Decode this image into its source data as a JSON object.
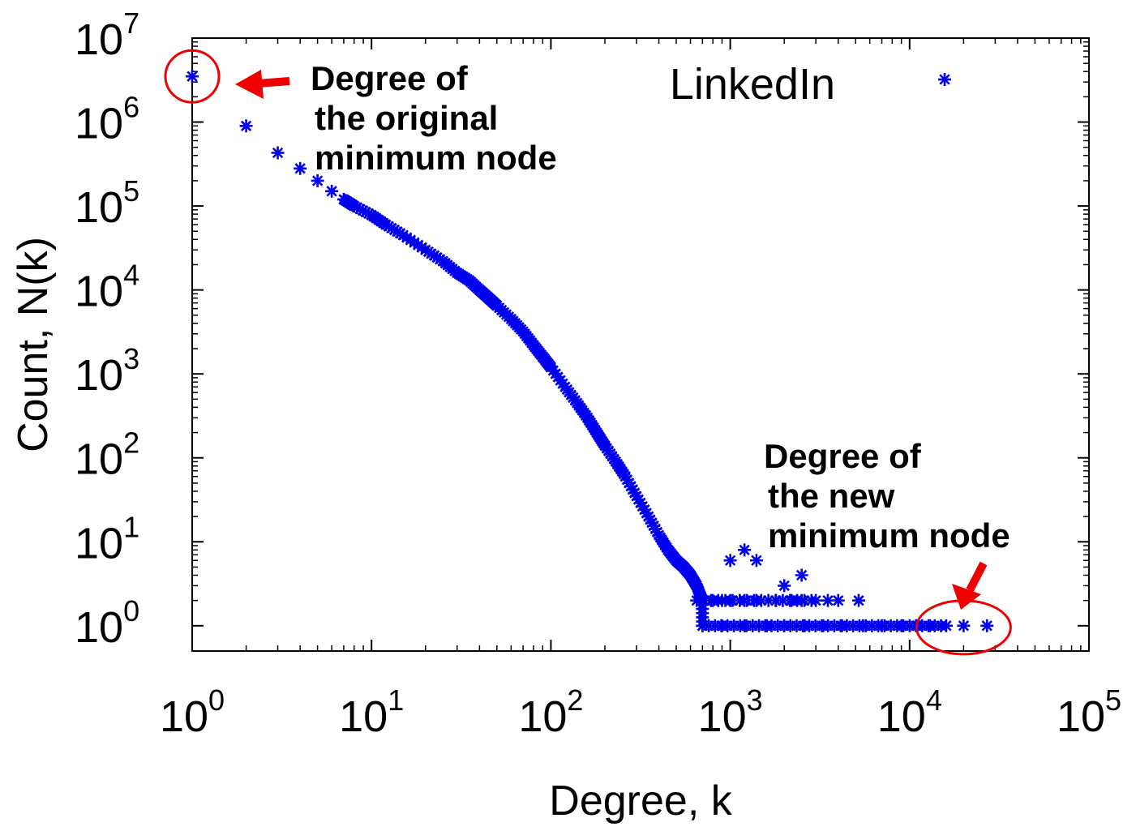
{
  "chart_data": {
    "type": "scatter",
    "title": "",
    "xlabel": "Degree, k",
    "ylabel": "Count, N(k)",
    "xscale": "log",
    "yscale": "log",
    "xlim": [
      1,
      100000
    ],
    "ylim": [
      0.5,
      10000000
    ],
    "grid": false,
    "legend": {
      "label": "LinkedIn",
      "placement": "top-right"
    },
    "x_ticks": [
      {
        "value": 1,
        "base": "10",
        "exp": "0"
      },
      {
        "value": 10,
        "base": "10",
        "exp": "1"
      },
      {
        "value": 100,
        "base": "10",
        "exp": "2"
      },
      {
        "value": 1000,
        "base": "10",
        "exp": "3"
      },
      {
        "value": 10000,
        "base": "10",
        "exp": "4"
      },
      {
        "value": 100000,
        "base": "10",
        "exp": "5"
      }
    ],
    "y_ticks": [
      {
        "value": 1,
        "base": "10",
        "exp": "0"
      },
      {
        "value": 10,
        "base": "10",
        "exp": "1"
      },
      {
        "value": 100,
        "base": "10",
        "exp": "2"
      },
      {
        "value": 1000,
        "base": "10",
        "exp": "3"
      },
      {
        "value": 10000,
        "base": "10",
        "exp": "4"
      },
      {
        "value": 100000,
        "base": "10",
        "exp": "5"
      },
      {
        "value": 1000000,
        "base": "10",
        "exp": "6"
      },
      {
        "value": 10000000,
        "base": "10",
        "exp": "7"
      }
    ],
    "series": [
      {
        "name": "LinkedIn",
        "color": "#0000ee",
        "marker": "asterisk",
        "points": [
          [
            1,
            3500000
          ],
          [
            2,
            900000
          ],
          [
            3,
            430000
          ],
          [
            4,
            280000
          ],
          [
            5,
            200000
          ],
          [
            6,
            150000
          ],
          [
            7,
            120000
          ],
          [
            8,
            100000
          ],
          [
            10,
            78000
          ],
          [
            12,
            60000
          ],
          [
            15,
            45000
          ],
          [
            20,
            30000
          ],
          [
            25,
            22000
          ],
          [
            30,
            16000
          ],
          [
            35,
            13000
          ],
          [
            40,
            10000
          ],
          [
            45,
            8000
          ],
          [
            50,
            6500
          ],
          [
            60,
            4500
          ],
          [
            70,
            3200
          ],
          [
            80,
            2200
          ],
          [
            90,
            1600
          ],
          [
            100,
            1200
          ],
          [
            120,
            700
          ],
          [
            140,
            450
          ],
          [
            160,
            300
          ],
          [
            180,
            200
          ],
          [
            200,
            140
          ],
          [
            230,
            90
          ],
          [
            260,
            60
          ],
          [
            300,
            35
          ],
          [
            350,
            20
          ],
          [
            400,
            12
          ],
          [
            450,
            8
          ],
          [
            500,
            6
          ],
          [
            550,
            5
          ],
          [
            600,
            4
          ],
          [
            650,
            3
          ],
          [
            700,
            2
          ],
          [
            800,
            2
          ],
          [
            900,
            2
          ],
          [
            1000,
            2
          ],
          [
            1200,
            2
          ],
          [
            1400,
            2
          ],
          [
            1800,
            2
          ],
          [
            2200,
            2
          ],
          [
            2500,
            2
          ],
          [
            3000,
            2
          ],
          [
            3500,
            2
          ],
          [
            4000,
            2
          ],
          [
            5200,
            2
          ],
          [
            1000,
            6
          ],
          [
            1200,
            8
          ],
          [
            1400,
            6
          ],
          [
            2000,
            3
          ],
          [
            2500,
            4
          ],
          [
            700,
            1
          ],
          [
            900,
            1
          ],
          [
            1200,
            1
          ],
          [
            1600,
            1
          ],
          [
            2000,
            1
          ],
          [
            2600,
            1
          ],
          [
            3300,
            1
          ],
          [
            4200,
            1
          ],
          [
            5500,
            1
          ],
          [
            7000,
            1
          ],
          [
            9000,
            1
          ],
          [
            11000,
            1
          ],
          [
            13000,
            1
          ],
          [
            16000,
            1
          ],
          [
            20000,
            1
          ],
          [
            27000,
            1
          ]
        ]
      }
    ],
    "annotations": [
      {
        "text_lines": [
          "Degree of",
          "the original",
          "minimum node"
        ],
        "target": [
          1,
          3500000
        ],
        "color": "#ee0000"
      },
      {
        "text_lines": [
          "Degree of",
          "the new",
          "minimum node"
        ],
        "target": [
          20000,
          1
        ],
        "color": "#ee0000"
      }
    ]
  }
}
